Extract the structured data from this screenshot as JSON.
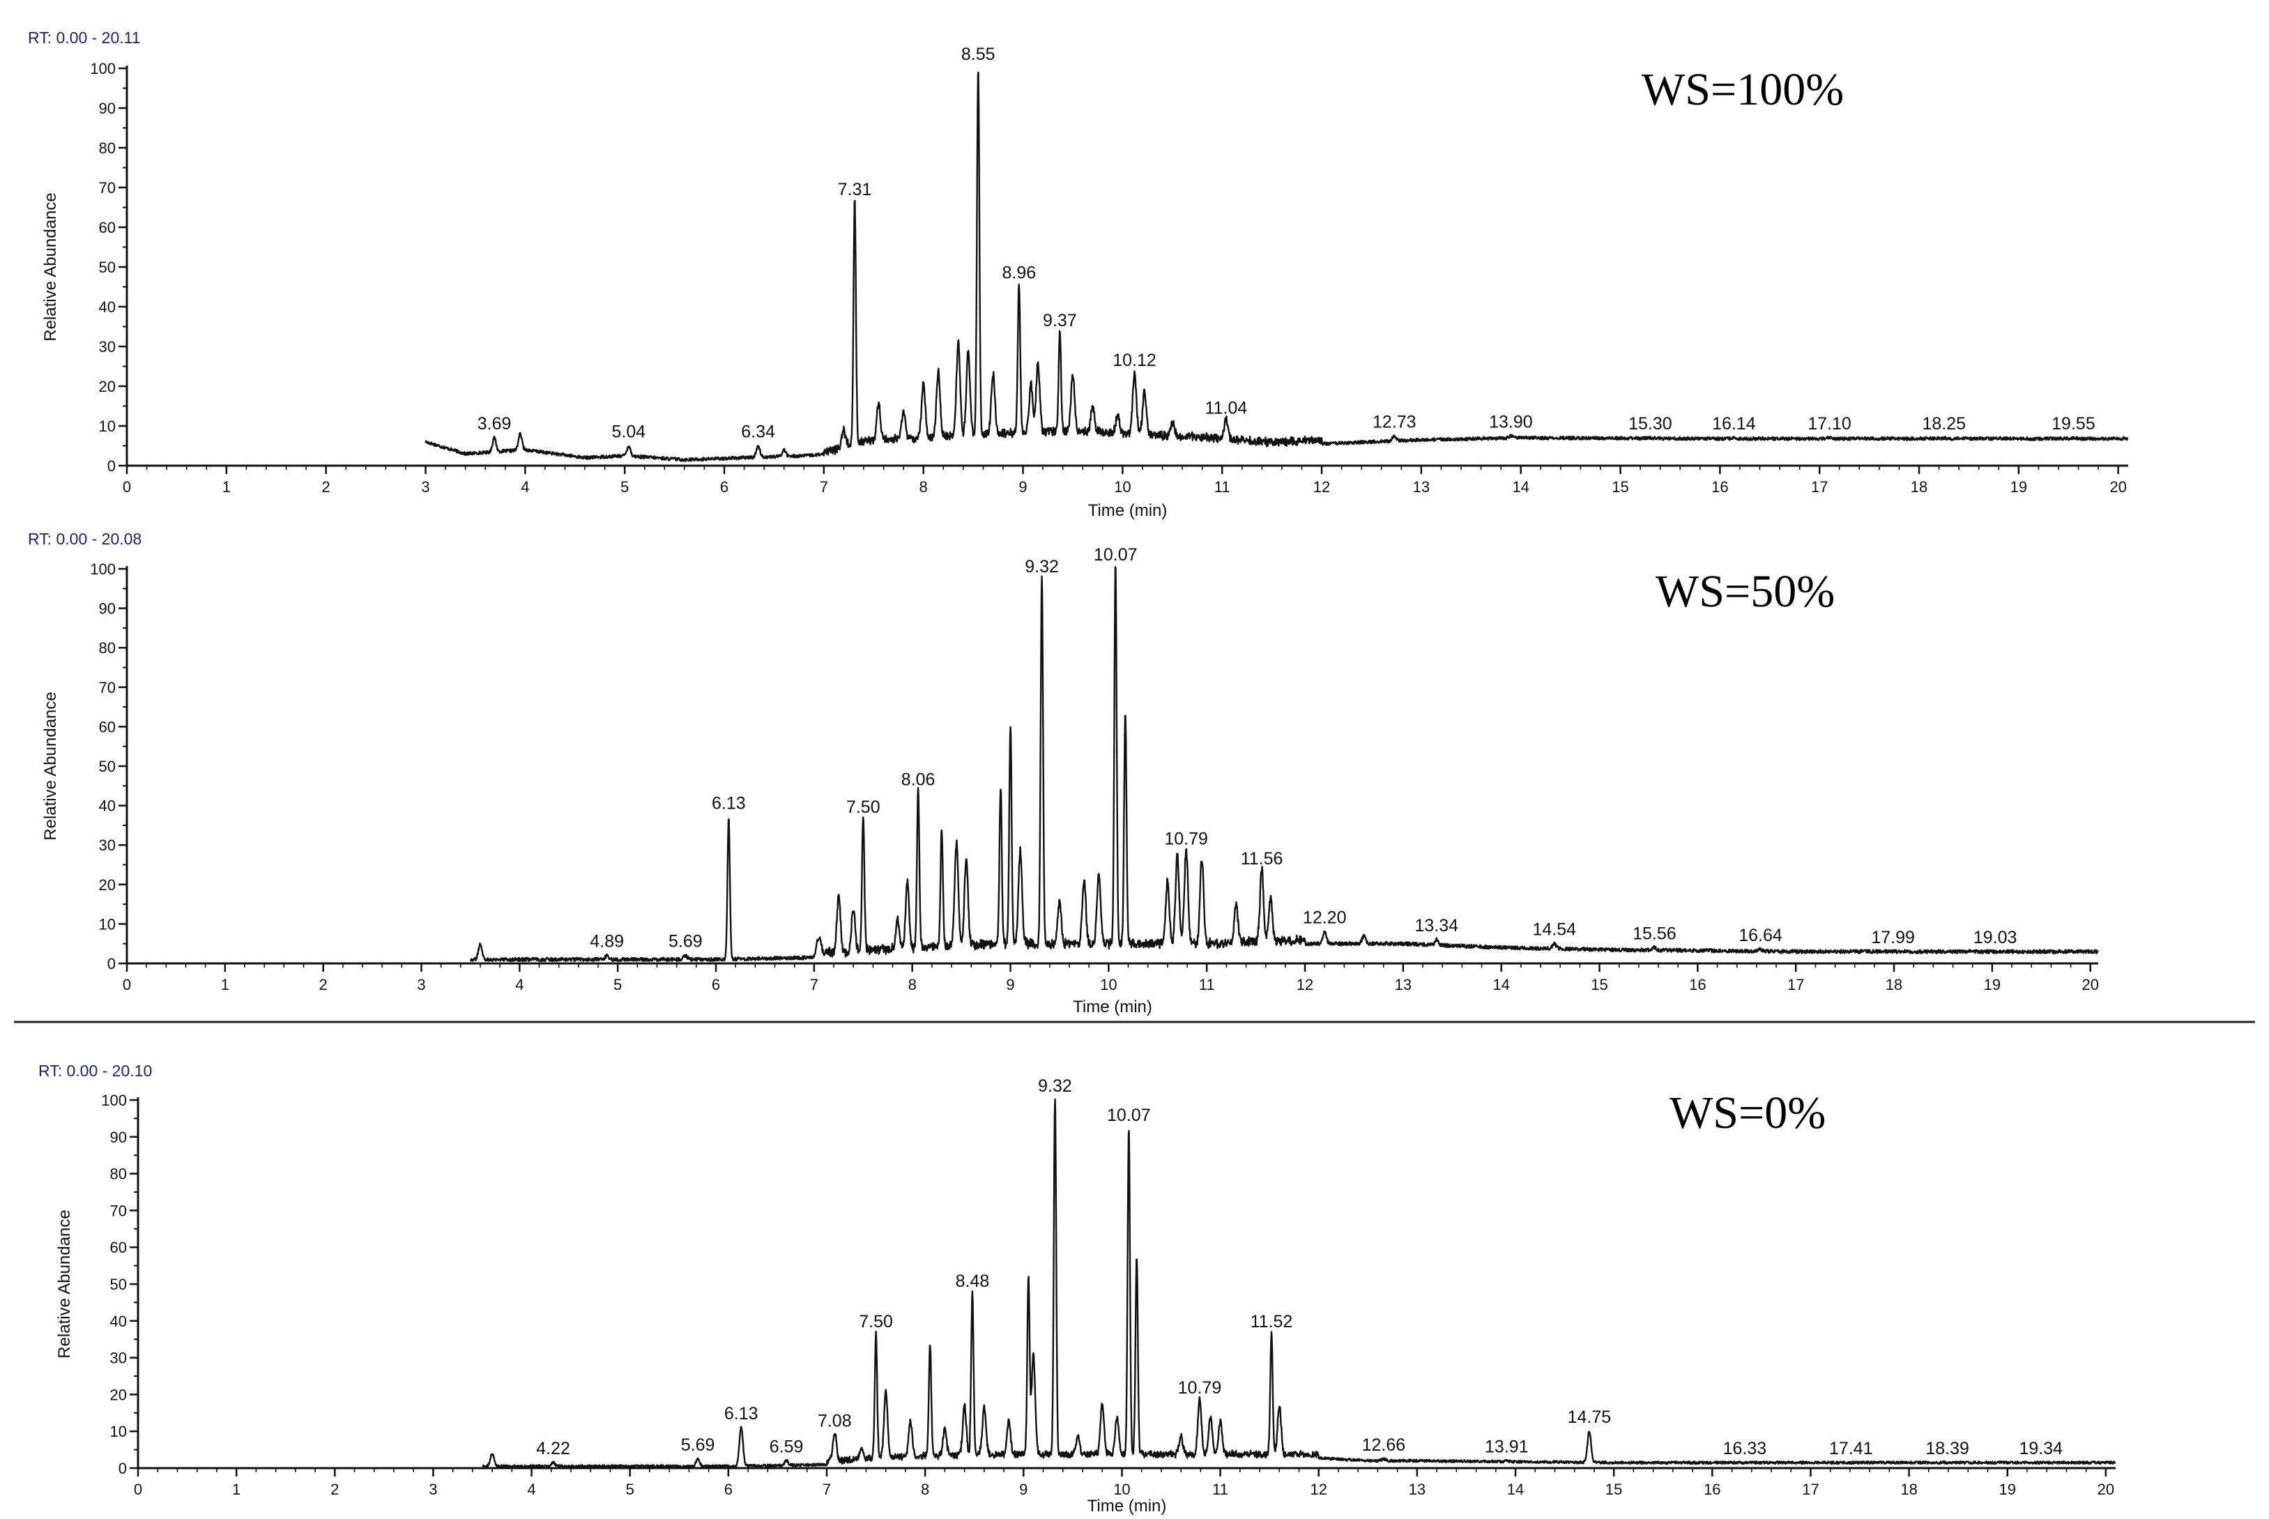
{
  "colors": {
    "trace": "#111111",
    "axis": "#111111",
    "rt_text": "#1a237e",
    "background": "#ffffff"
  },
  "chart_data": [
    {
      "type": "line",
      "rt_range": "RT: 0.00 - 20.11",
      "title": "WS=100%",
      "xlabel": "Time (min)",
      "ylabel": "Relative Abundance",
      "xlim": [
        0,
        20.1
      ],
      "ylim": [
        0,
        100
      ],
      "x_ticks": [
        "0",
        "1",
        "2",
        "3",
        "4",
        "5",
        "6",
        "7",
        "8",
        "9",
        "10",
        "11",
        "12",
        "13",
        "14",
        "15",
        "16",
        "17",
        "18",
        "19",
        "20"
      ],
      "y_ticks": [
        "0",
        "10",
        "20",
        "30",
        "40",
        "50",
        "60",
        "70",
        "80",
        "90",
        "100"
      ],
      "trace_start": 3.0,
      "trace_end": 20.1,
      "baseline": [
        [
          3.0,
          6
        ],
        [
          3.4,
          3
        ],
        [
          4.0,
          4
        ],
        [
          4.6,
          2
        ],
        [
          5.0,
          2.5
        ],
        [
          5.6,
          1.5
        ],
        [
          6.2,
          2
        ],
        [
          6.8,
          2.5
        ],
        [
          7.1,
          3
        ],
        [
          7.3,
          5
        ],
        [
          7.8,
          6
        ],
        [
          8.6,
          7
        ],
        [
          9.5,
          8
        ],
        [
          10.2,
          7
        ],
        [
          11.0,
          6
        ],
        [
          11.5,
          5
        ],
        [
          12.0,
          5.5
        ],
        [
          13.0,
          6.5
        ],
        [
          14.0,
          7
        ],
        [
          16.0,
          6.8
        ],
        [
          18.0,
          6.8
        ],
        [
          20.1,
          6.8
        ]
      ],
      "noise": 0.8,
      "peaks": [
        {
          "x": 3.69,
          "y": 7,
          "label": "3.69"
        },
        {
          "x": 3.95,
          "y": 8
        },
        {
          "x": 5.04,
          "y": 5,
          "label": "5.04"
        },
        {
          "x": 6.34,
          "y": 5,
          "label": "6.34"
        },
        {
          "x": 6.6,
          "y": 4
        },
        {
          "x": 7.2,
          "y": 8
        },
        {
          "x": 7.31,
          "y": 66,
          "label": "7.31"
        },
        {
          "x": 7.55,
          "y": 15
        },
        {
          "x": 7.8,
          "y": 13
        },
        {
          "x": 8.0,
          "y": 20
        },
        {
          "x": 8.15,
          "y": 23
        },
        {
          "x": 8.35,
          "y": 30
        },
        {
          "x": 8.45,
          "y": 28
        },
        {
          "x": 8.55,
          "y": 100,
          "label": "8.55"
        },
        {
          "x": 8.7,
          "y": 22
        },
        {
          "x": 8.96,
          "y": 45,
          "label": "8.96"
        },
        {
          "x": 9.08,
          "y": 20
        },
        {
          "x": 9.15,
          "y": 25
        },
        {
          "x": 9.37,
          "y": 33,
          "label": "9.37"
        },
        {
          "x": 9.5,
          "y": 22
        },
        {
          "x": 9.7,
          "y": 14
        },
        {
          "x": 9.95,
          "y": 12
        },
        {
          "x": 10.12,
          "y": 23,
          "label": "10.12"
        },
        {
          "x": 10.22,
          "y": 18
        },
        {
          "x": 10.5,
          "y": 10
        },
        {
          "x": 11.04,
          "y": 11,
          "label": "11.04"
        },
        {
          "x": 12.73,
          "y": 7.5,
          "label": "12.73"
        },
        {
          "x": 13.9,
          "y": 7.5,
          "label": "13.90"
        },
        {
          "x": 15.3,
          "y": 7,
          "label": "15.30"
        },
        {
          "x": 16.14,
          "y": 7,
          "label": "16.14"
        },
        {
          "x": 17.1,
          "y": 7,
          "label": "17.10"
        },
        {
          "x": 18.25,
          "y": 7,
          "label": "18.25"
        },
        {
          "x": 19.55,
          "y": 7,
          "label": "19.55"
        }
      ]
    },
    {
      "type": "line",
      "rt_range": "RT: 0.00 - 20.08",
      "title": "WS=50%",
      "xlabel": "Time (min)",
      "ylabel": "Relative Abundance",
      "xlim": [
        0,
        20.08
      ],
      "ylim": [
        0,
        100
      ],
      "x_ticks": [
        "0",
        "1",
        "2",
        "3",
        "4",
        "5",
        "6",
        "7",
        "8",
        "9",
        "10",
        "11",
        "12",
        "13",
        "14",
        "15",
        "16",
        "17",
        "18",
        "19",
        "20"
      ],
      "y_ticks": [
        "0",
        "10",
        "20",
        "30",
        "40",
        "50",
        "60",
        "70",
        "80",
        "90",
        "100"
      ],
      "trace_start": 3.5,
      "trace_end": 20.08,
      "baseline": [
        [
          3.5,
          1
        ],
        [
          5.0,
          1
        ],
        [
          6.0,
          1
        ],
        [
          7.0,
          1.5
        ],
        [
          8.0,
          3
        ],
        [
          9.0,
          4
        ],
        [
          10.0,
          4
        ],
        [
          11.0,
          4
        ],
        [
          12.0,
          5
        ],
        [
          13.0,
          5
        ],
        [
          14.0,
          4
        ],
        [
          15.0,
          3.5
        ],
        [
          17.0,
          3
        ],
        [
          20.08,
          3
        ]
      ],
      "noise": 0.9,
      "peaks": [
        {
          "x": 3.6,
          "y": 5
        },
        {
          "x": 4.89,
          "y": 2,
          "label": "4.89"
        },
        {
          "x": 5.69,
          "y": 2,
          "label": "5.69"
        },
        {
          "x": 6.13,
          "y": 37,
          "label": "6.13"
        },
        {
          "x": 7.05,
          "y": 6
        },
        {
          "x": 7.25,
          "y": 16
        },
        {
          "x": 7.4,
          "y": 13
        },
        {
          "x": 7.5,
          "y": 36,
          "label": "7.50"
        },
        {
          "x": 7.85,
          "y": 10
        },
        {
          "x": 7.95,
          "y": 20
        },
        {
          "x": 8.06,
          "y": 43,
          "label": "8.06"
        },
        {
          "x": 8.3,
          "y": 33
        },
        {
          "x": 8.45,
          "y": 30
        },
        {
          "x": 8.55,
          "y": 26
        },
        {
          "x": 8.9,
          "y": 44
        },
        {
          "x": 9.0,
          "y": 60
        },
        {
          "x": 9.1,
          "y": 28
        },
        {
          "x": 9.32,
          "y": 97,
          "label": "9.32"
        },
        {
          "x": 9.5,
          "y": 15
        },
        {
          "x": 9.75,
          "y": 20
        },
        {
          "x": 9.9,
          "y": 22
        },
        {
          "x": 10.07,
          "y": 100,
          "label": "10.07"
        },
        {
          "x": 10.17,
          "y": 63
        },
        {
          "x": 10.6,
          "y": 20
        },
        {
          "x": 10.7,
          "y": 27
        },
        {
          "x": 10.79,
          "y": 28,
          "label": "10.79"
        },
        {
          "x": 10.95,
          "y": 26
        },
        {
          "x": 11.3,
          "y": 14
        },
        {
          "x": 11.56,
          "y": 23,
          "label": "11.56"
        },
        {
          "x": 11.65,
          "y": 16
        },
        {
          "x": 12.2,
          "y": 8,
          "label": "12.20"
        },
        {
          "x": 12.6,
          "y": 7
        },
        {
          "x": 13.34,
          "y": 6,
          "label": "13.34"
        },
        {
          "x": 14.54,
          "y": 5,
          "label": "14.54"
        },
        {
          "x": 15.56,
          "y": 4,
          "label": "15.56"
        },
        {
          "x": 16.64,
          "y": 3.5,
          "label": "16.64"
        },
        {
          "x": 17.99,
          "y": 3,
          "label": "17.99"
        },
        {
          "x": 19.03,
          "y": 3,
          "label": "19.03"
        }
      ]
    },
    {
      "type": "line",
      "rt_range": "RT: 0.00 - 20.10",
      "title": "WS=0%",
      "xlabel": "Time (min)",
      "ylabel": "Relative Abundance",
      "xlim": [
        0,
        20.1
      ],
      "ylim": [
        0,
        100
      ],
      "x_ticks": [
        "0",
        "1",
        "2",
        "3",
        "4",
        "5",
        "6",
        "7",
        "8",
        "9",
        "10",
        "11",
        "12",
        "13",
        "14",
        "15",
        "16",
        "17",
        "18",
        "19",
        "20"
      ],
      "y_ticks": [
        "0",
        "10",
        "20",
        "30",
        "40",
        "50",
        "60",
        "70",
        "80",
        "90",
        "100"
      ],
      "trace_start": 3.5,
      "trace_end": 20.1,
      "baseline": [
        [
          3.5,
          0.5
        ],
        [
          6.0,
          0.5
        ],
        [
          7.0,
          1
        ],
        [
          7.5,
          2
        ],
        [
          8.5,
          3
        ],
        [
          9.5,
          3
        ],
        [
          10.5,
          3
        ],
        [
          11.0,
          3
        ],
        [
          11.8,
          3
        ],
        [
          12.5,
          2
        ],
        [
          13.0,
          2
        ],
        [
          15.0,
          1.5
        ],
        [
          20.1,
          1.5
        ]
      ],
      "noise": 0.7,
      "peaks": [
        {
          "x": 3.6,
          "y": 4
        },
        {
          "x": 4.22,
          "y": 1.5,
          "label": "4.22"
        },
        {
          "x": 5.69,
          "y": 2.5,
          "label": "5.69"
        },
        {
          "x": 6.13,
          "y": 11,
          "label": "6.13"
        },
        {
          "x": 6.59,
          "y": 2,
          "label": "6.59"
        },
        {
          "x": 7.08,
          "y": 9,
          "label": "7.08"
        },
        {
          "x": 7.35,
          "y": 5
        },
        {
          "x": 7.5,
          "y": 36,
          "label": "7.50"
        },
        {
          "x": 7.6,
          "y": 20
        },
        {
          "x": 7.85,
          "y": 12
        },
        {
          "x": 8.05,
          "y": 33
        },
        {
          "x": 8.2,
          "y": 10
        },
        {
          "x": 8.4,
          "y": 16
        },
        {
          "x": 8.48,
          "y": 47,
          "label": "8.48"
        },
        {
          "x": 8.6,
          "y": 16
        },
        {
          "x": 8.85,
          "y": 12
        },
        {
          "x": 9.05,
          "y": 51
        },
        {
          "x": 9.1,
          "y": 30
        },
        {
          "x": 9.32,
          "y": 100,
          "label": "9.32"
        },
        {
          "x": 9.55,
          "y": 8
        },
        {
          "x": 9.8,
          "y": 17
        },
        {
          "x": 9.95,
          "y": 13
        },
        {
          "x": 10.07,
          "y": 92,
          "label": "10.07"
        },
        {
          "x": 10.15,
          "y": 57
        },
        {
          "x": 10.6,
          "y": 8
        },
        {
          "x": 10.79,
          "y": 18,
          "label": "10.79"
        },
        {
          "x": 10.9,
          "y": 13
        },
        {
          "x": 11.0,
          "y": 12
        },
        {
          "x": 11.52,
          "y": 36,
          "label": "11.52"
        },
        {
          "x": 11.6,
          "y": 16
        },
        {
          "x": 12.66,
          "y": 2.5,
          "label": "12.66"
        },
        {
          "x": 13.91,
          "y": 2,
          "label": "13.91"
        },
        {
          "x": 14.75,
          "y": 10,
          "label": "14.75"
        },
        {
          "x": 16.33,
          "y": 1.5,
          "label": "16.33"
        },
        {
          "x": 17.41,
          "y": 1.5,
          "label": "17.41"
        },
        {
          "x": 18.39,
          "y": 1.5,
          "label": "18.39"
        },
        {
          "x": 19.34,
          "y": 1.5,
          "label": "19.34"
        }
      ]
    }
  ]
}
